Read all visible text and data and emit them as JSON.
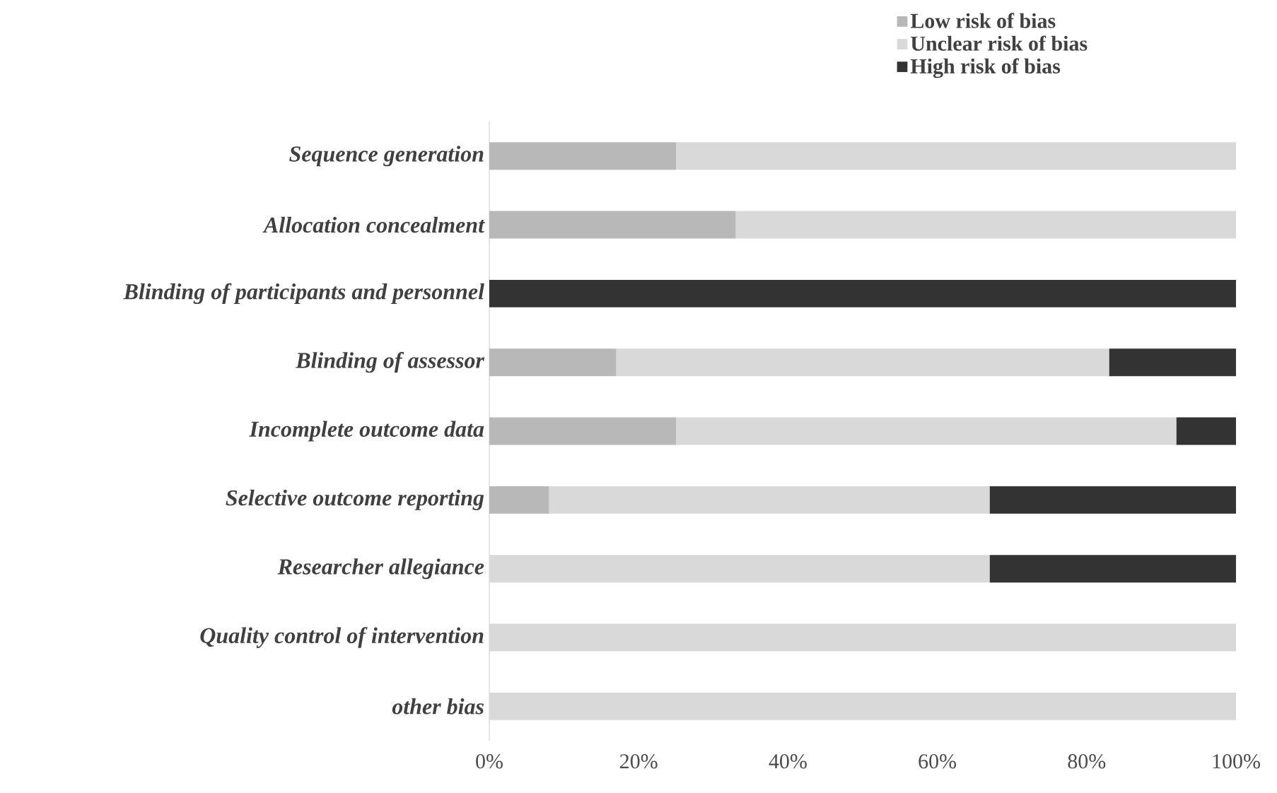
{
  "chart_data": {
    "type": "bar",
    "orientation": "horizontal",
    "stacked": true,
    "legend": "top right",
    "categories": [
      "Sequence generation",
      "Allocation concealment",
      "Blinding of participants and personnel",
      "Blinding of assessor",
      "Incomplete outcome data",
      "Selective outcome reporting",
      "Researcher allegiance",
      "Quality control of intervention",
      "other bias"
    ],
    "series": [
      {
        "name": "Low risk of bias",
        "color": "#b8b8b8",
        "values": [
          25,
          33,
          0,
          17,
          25,
          8,
          0,
          0,
          0
        ]
      },
      {
        "name": "Unclear risk of bias",
        "color": "#d9d9d9",
        "values": [
          75,
          67,
          0,
          66,
          67,
          59,
          67,
          100,
          100
        ]
      },
      {
        "name": "High risk of bias",
        "color": "#333333",
        "values": [
          0,
          0,
          100,
          17,
          8,
          33,
          33,
          0,
          0
        ]
      }
    ],
    "xlim": [
      0,
      100
    ],
    "xticks": [
      {
        "value": 0,
        "label": "0%"
      },
      {
        "value": 20,
        "label": "20%"
      },
      {
        "value": 40,
        "label": "40%"
      },
      {
        "value": 60,
        "label": "60%"
      },
      {
        "value": 80,
        "label": "80%"
      },
      {
        "value": 100,
        "label": "100%"
      }
    ]
  }
}
